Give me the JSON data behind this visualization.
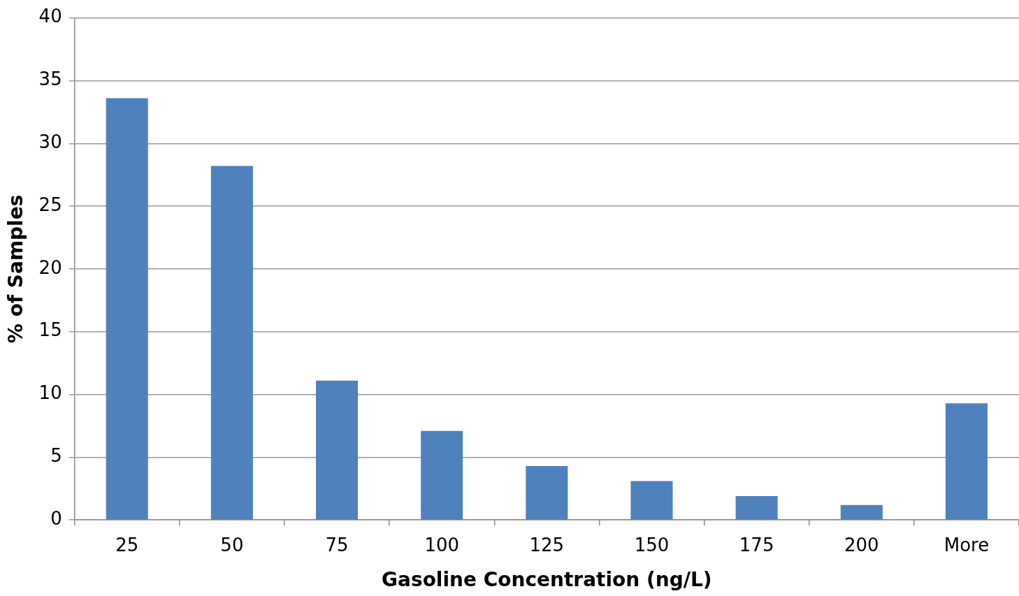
{
  "chart_data": {
    "type": "bar",
    "xlabel": "Gasoline Concentration (ng/L)",
    "ylabel": "% of Samples",
    "categories": [
      "25",
      "50",
      "75",
      "100",
      "125",
      "150",
      "175",
      "200",
      "More"
    ],
    "values": [
      33.6,
      28.2,
      11.1,
      7.1,
      4.3,
      3.1,
      1.9,
      1.2,
      9.3
    ],
    "color": "#4f81bd",
    "ylim": [
      0,
      40
    ],
    "yticks": [
      0,
      5,
      10,
      15,
      20,
      25,
      30,
      35,
      40
    ],
    "grid": "y",
    "legend": false
  }
}
